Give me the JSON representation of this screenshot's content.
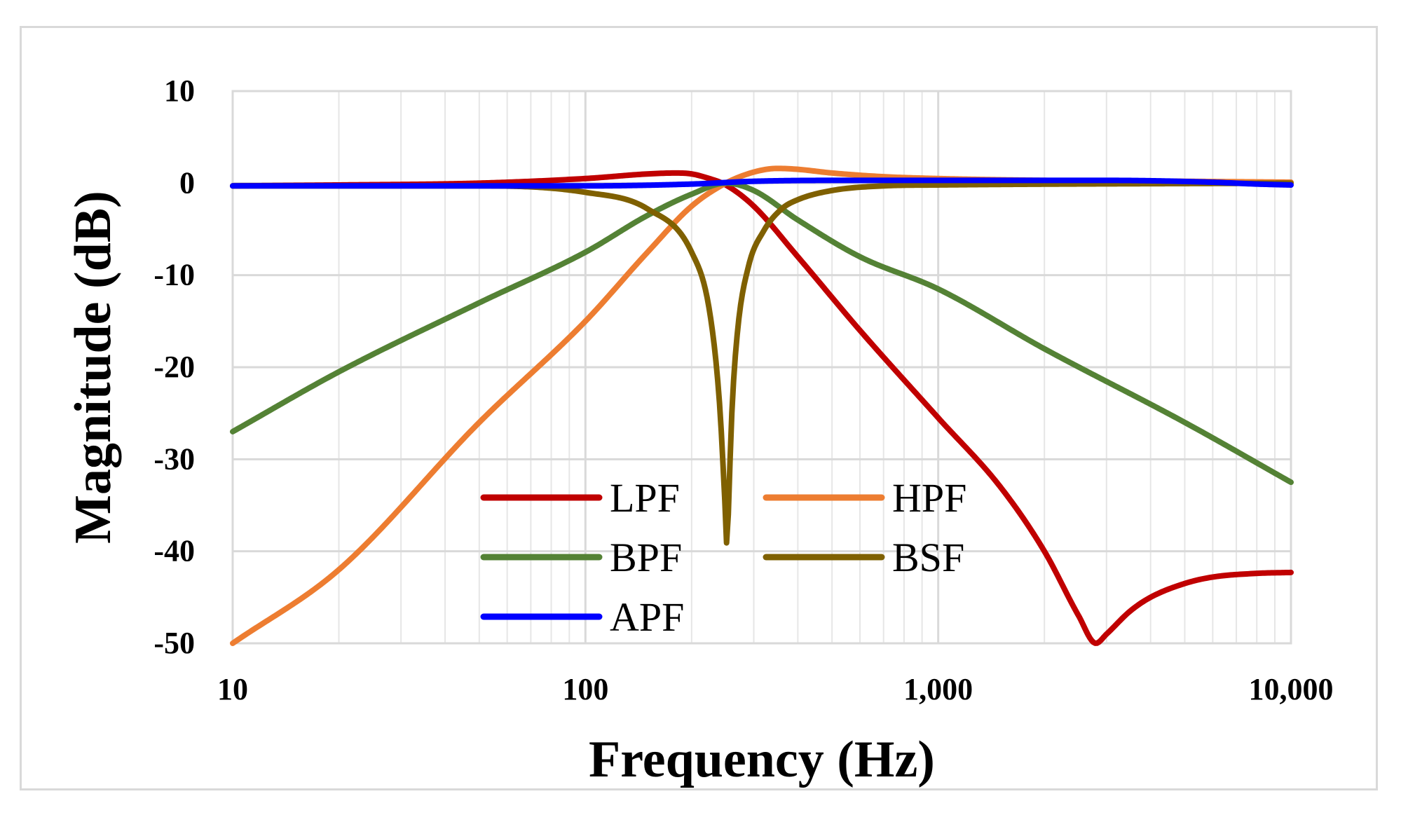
{
  "chart_data": {
    "type": "line",
    "title": "",
    "xlabel": "Frequency (Hz)",
    "ylabel": "Magnitude (dB)",
    "xscale": "log",
    "xlim": [
      10,
      10000
    ],
    "ylim": [
      -50,
      10
    ],
    "grid": true,
    "legend_position": "bottom-center",
    "xticks": [
      {
        "value": 10,
        "label": "10"
      },
      {
        "value": 100,
        "label": "100"
      },
      {
        "value": 1000,
        "label": "1,000"
      },
      {
        "value": 10000,
        "label": "10,000"
      }
    ],
    "yticks": [
      {
        "value": 10,
        "label": "10"
      },
      {
        "value": 0,
        "label": "0"
      },
      {
        "value": -10,
        "label": "-10"
      },
      {
        "value": -20,
        "label": "-20"
      },
      {
        "value": -30,
        "label": "-30"
      },
      {
        "value": -40,
        "label": "-40"
      },
      {
        "value": -50,
        "label": "-50"
      }
    ],
    "series": [
      {
        "name": "LPF",
        "color": "#c00000",
        "x": [
          10,
          20,
          50,
          100,
          150,
          180,
          200,
          220,
          250,
          300,
          400,
          600,
          1000,
          1500,
          2000,
          2500,
          2800,
          3000,
          3500,
          4000,
          5000,
          6000,
          8000,
          10000
        ],
        "y": [
          -0.3,
          -0.2,
          0,
          0.5,
          1.0,
          1.1,
          1.0,
          0.6,
          -0.2,
          -2.5,
          -8,
          -16,
          -25.5,
          -33,
          -40,
          -47,
          -50,
          -49,
          -46.5,
          -45,
          -43.5,
          -42.8,
          -42.4,
          -42.3
        ]
      },
      {
        "name": "HPF",
        "color": "#ed7d31",
        "x": [
          10,
          20,
          50,
          100,
          150,
          200,
          250,
          300,
          350,
          400,
          500,
          700,
          1000,
          2000,
          5000,
          10000
        ],
        "y": [
          -50,
          -42,
          -26,
          -15,
          -7.5,
          -2.5,
          0,
          1.2,
          1.6,
          1.5,
          1.1,
          0.7,
          0.5,
          0.3,
          0.2,
          0.1
        ]
      },
      {
        "name": "BPF",
        "color": "#548235",
        "x": [
          10,
          20,
          50,
          100,
          150,
          200,
          250,
          300,
          400,
          600,
          1000,
          2000,
          5000,
          10000
        ],
        "y": [
          -27,
          -20.5,
          -13,
          -7.5,
          -3.5,
          -1.2,
          0,
          -0.8,
          -4,
          -8,
          -11.5,
          -18,
          -26,
          -32.5
        ]
      },
      {
        "name": "BSF",
        "color": "#7f6000",
        "x": [
          10,
          50,
          100,
          150,
          200,
          225,
          240,
          248,
          252,
          255,
          260,
          270,
          290,
          320,
          360,
          400,
          500,
          700,
          1000,
          10000
        ],
        "y": [
          -0.3,
          -0.3,
          -1,
          -2.8,
          -7.5,
          -14,
          -24,
          -34,
          -39.5,
          -34,
          -25,
          -16,
          -9,
          -5.2,
          -2.8,
          -1.8,
          -0.8,
          -0.3,
          -0.2,
          0
        ]
      },
      {
        "name": "APF",
        "color": "#0000ff",
        "x": [
          10,
          100,
          200,
          300,
          500,
          1000,
          3000,
          6000,
          8000,
          10000
        ],
        "y": [
          -0.3,
          -0.3,
          -0.1,
          0.2,
          0.3,
          0.3,
          0.3,
          0.1,
          -0.1,
          -0.2
        ]
      }
    ]
  }
}
